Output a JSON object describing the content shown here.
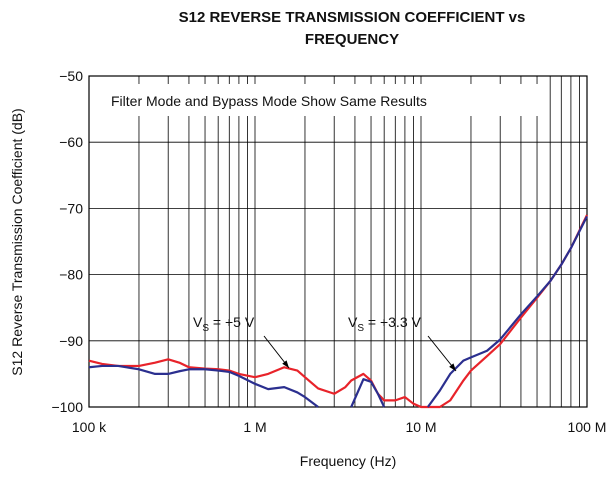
{
  "chart_data": {
    "type": "line",
    "title": [
      "S12 REVERSE TRANSMISSION COEFFICIENT vs",
      "FREQUENCY"
    ],
    "xlabel": "Frequency (Hz)",
    "ylabel": "S12 Reverse Transmission Coefficient (dB)",
    "xscale": "log",
    "grid": true,
    "xlim": [
      100000,
      100000000
    ],
    "ylim": [
      -100,
      -50
    ],
    "xticks": [
      {
        "value": 100000,
        "label": "100 k"
      },
      {
        "value": 1000000,
        "label": "1 M"
      },
      {
        "value": 10000000,
        "label": "10 M"
      },
      {
        "value": 100000000,
        "label": "100 M"
      }
    ],
    "yticks": [
      {
        "value": -100,
        "label": "−100"
      },
      {
        "value": -90,
        "label": "−90"
      },
      {
        "value": -80,
        "label": "−80"
      },
      {
        "value": -70,
        "label": "−70"
      },
      {
        "value": -60,
        "label": "−60"
      },
      {
        "value": -50,
        "label": "−50"
      }
    ],
    "x": [
      100000,
      120000,
      150000,
      200000,
      250000,
      300000,
      350000,
      400000,
      500000,
      600000,
      700000,
      800000,
      1000000,
      1200000,
      1500000,
      1800000,
      2000000,
      2400000,
      3000000,
      3500000,
      3800000,
      4500000,
      5000000,
      5500000,
      6000000,
      7000000,
      8000000,
      9000000,
      10000000,
      11000000,
      13000000,
      15000000,
      18000000,
      20000000,
      25000000,
      30000000,
      40000000,
      50000000,
      60000000,
      70000000,
      80000000,
      100000000
    ],
    "series": [
      {
        "color": "#e8232a",
        "values": [
          -93,
          -93.5,
          -93.8,
          -93.8,
          -93.3,
          -92.8,
          -93.3,
          -94,
          -94.2,
          -94.3,
          -94.5,
          -95,
          -95.5,
          -95,
          -94,
          -94.5,
          -95.5,
          -97.2,
          -98,
          -97,
          -96,
          -95,
          -96,
          -98,
          -99,
          -99,
          -98.5,
          -99.5,
          -100,
          -100,
          -100,
          -99,
          -96,
          -94.5,
          -92.3,
          -90.5,
          -86.5,
          -83.5,
          -81,
          -78.5,
          -76,
          -71
        ]
      },
      {
        "color": "#2b2f8f",
        "values": [
          -94,
          -93.8,
          -93.8,
          -94.3,
          -95,
          -95,
          -94.6,
          -94.3,
          -94.3,
          -94.5,
          -94.7,
          -95.3,
          -96.5,
          -97.3,
          -97,
          -97.8,
          -98.5,
          -100,
          null,
          null,
          -100,
          -95.8,
          -96.2,
          -98,
          -100,
          null,
          null,
          null,
          null,
          -100,
          -97.5,
          -95,
          -93,
          -92.5,
          -91.5,
          -89.8,
          -86,
          -83.3,
          -81,
          -78.5,
          -76,
          -71.2
        ]
      }
    ],
    "annotations": {
      "box": "Filter Mode and Bypass Mode Show Same Results",
      "label_5v": {
        "main": "V",
        "sub": "S",
        "rest": " = +5 V"
      },
      "label_33v": {
        "main": "V",
        "sub": "S",
        "rest": " = +3.3 V"
      }
    }
  }
}
